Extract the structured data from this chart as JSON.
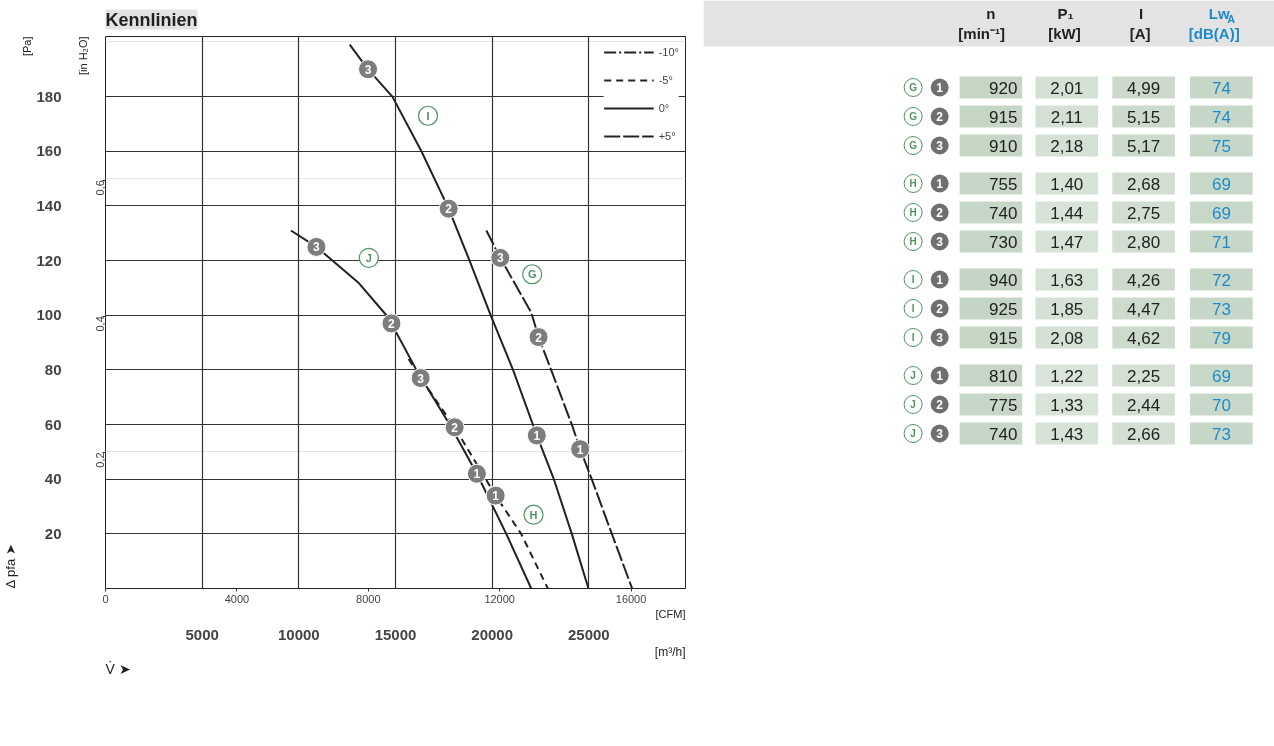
{
  "chart_data": [
    {
      "type": "line",
      "title": "Kennlinien",
      "xlabel": "[m³/h]",
      "ylabel": "[Pa]",
      "x2label": "[CFM]",
      "y2label": "[in H₂O]",
      "xlim": [
        0,
        30000
      ],
      "xticks": [
        5000,
        10000,
        15000,
        20000,
        25000
      ],
      "ylim": [
        0,
        202
      ],
      "yticks": [
        20,
        40,
        60,
        80,
        100,
        120,
        140,
        160,
        180
      ],
      "x2lim": [
        0,
        17657
      ],
      "x2ticks": [
        0,
        4000,
        8000,
        12000,
        16000
      ],
      "y2lim": [
        0,
        0.811
      ],
      "y2ticks": [
        {
          "value": 0.2,
          "label": "0,2"
        },
        {
          "value": 0.4,
          "label": "0,4"
        },
        {
          "value": 0.6,
          "label": "0,6"
        }
      ],
      "grid": true,
      "legend": "top right",
      "series": [
        {
          "name": "-10°",
          "color": "#222222",
          "line_style": "dashdot",
          "x": [
            null
          ],
          "values": [
            null
          ]
        },
        {
          "name": "-5°",
          "color": "#222222",
          "line_style": "dashed",
          "x": [
            15680,
            16300,
            18060,
            20180,
            21500,
            22880
          ],
          "values": [
            84,
            77,
            59,
            34,
            20,
            0
          ]
        },
        {
          "name": "0°",
          "color": "#222222",
          "line_style": "solid",
          "x": [
            12630,
            13580,
            14840,
            16340,
            17750,
            18830,
            19920,
            21080,
            22310,
            23190,
            24120,
            24980
          ],
          "values": [
            199,
            190,
            180,
            160,
            139,
            120,
            100,
            80,
            56,
            40,
            20,
            0
          ]
        },
        {
          "color": "#222222",
          "line_style": "solid",
          "x": [
            9590,
            10910,
            13070,
            14530,
            14790,
            16080,
            17800,
            19210,
            20730,
            22020
          ],
          "values": [
            131,
            125,
            112,
            100,
            97,
            80,
            60,
            42,
            20,
            0
          ]
        },
        {
          "name": "+5°",
          "color": "#222222",
          "line_style": "longdash",
          "x": [
            19700,
            20420,
            22020,
            22400,
            23050,
            24120,
            24550,
            25150,
            26190,
            27240
          ],
          "values": [
            131,
            121,
            101,
            92,
            80,
            60,
            51,
            40,
            20,
            0
          ]
        },
        {
          "name": "1",
          "type": "scatter",
          "marker": "circle",
          "color": "#7d7d7d",
          "x": [
            20180,
            22310,
            19210,
            24550
          ],
          "values": [
            34,
            56,
            42,
            51
          ]
        },
        {
          "name": "2",
          "type": "scatter",
          "marker": "circle",
          "color": "#7d7d7d",
          "x": [
            18060,
            17750,
            14790,
            22400
          ],
          "values": [
            59,
            139,
            97,
            92
          ]
        },
        {
          "name": "3",
          "type": "scatter",
          "marker": "circle",
          "color": "#7d7d7d",
          "x": [
            16300,
            13580,
            10910,
            20420
          ],
          "values": [
            77,
            190,
            125,
            121
          ]
        }
      ],
      "annotations": [
        "Δ pfa ➤",
        "V̇ ➤",
        {
          "text": "I",
          "x": 16680,
          "y": 173
        },
        {
          "text": "J",
          "x": 13620,
          "y": 121
        },
        {
          "text": "G",
          "x": 22070,
          "y": 115
        },
        {
          "text": "H",
          "x": 22140,
          "y": 27
        }
      ]
    },
    {
      "type": "heatmap",
      "categories": [
        "n\n[min⁻¹]",
        "P₁\n[kW]",
        "I\n[A]",
        "Lw$_{A}$\n[dB(A)]"
      ],
      "y_categories": [
        "G",
        "G",
        "G",
        "H",
        "H",
        "H",
        "I",
        "I",
        "I",
        "J",
        "J",
        "J"
      ],
      "y2_categories": [
        "1",
        "2",
        "3",
        "1",
        "2",
        "3",
        "1",
        "2",
        "3",
        "1",
        "2",
        "3"
      ],
      "cells": [
        [
          920,
          2.01,
          4.99,
          74
        ],
        [
          915,
          2.11,
          5.15,
          74
        ],
        [
          910,
          2.18,
          5.17,
          75
        ],
        [
          755,
          1.4,
          2.68,
          69
        ],
        [
          740,
          1.44,
          2.75,
          69
        ],
        [
          730,
          1.47,
          2.8,
          71
        ],
        [
          940,
          1.63,
          4.26,
          72
        ],
        [
          925,
          1.85,
          4.47,
          73
        ],
        [
          915,
          2.08,
          4.62,
          79
        ],
        [
          810,
          1.22,
          2.25,
          69
        ],
        [
          775,
          1.33,
          2.44,
          70
        ],
        [
          740,
          1.43,
          2.66,
          73
        ]
      ],
      "cell_labels": [
        [
          "920",
          "2,01",
          "4,99",
          "74"
        ],
        [
          "915",
          "2,11",
          "5,15",
          "74"
        ],
        [
          "910",
          "2,18",
          "5,17",
          "75"
        ],
        [
          "755",
          "1,40",
          "2,68",
          "69"
        ],
        [
          "740",
          "1,44",
          "2,75",
          "69"
        ],
        [
          "730",
          "1,47",
          "2,80",
          "71"
        ],
        [
          "940",
          "1,63",
          "4,26",
          "72"
        ],
        [
          "925",
          "1,85",
          "4,47",
          "73"
        ],
        [
          "915",
          "2,08",
          "4,62",
          "79"
        ],
        [
          "810",
          "1,22",
          "2,25",
          "69"
        ],
        [
          "775",
          "1,33",
          "2,44",
          "70"
        ],
        [
          "740",
          "1,43",
          "2,66",
          "73"
        ]
      ]
    }
  ]
}
